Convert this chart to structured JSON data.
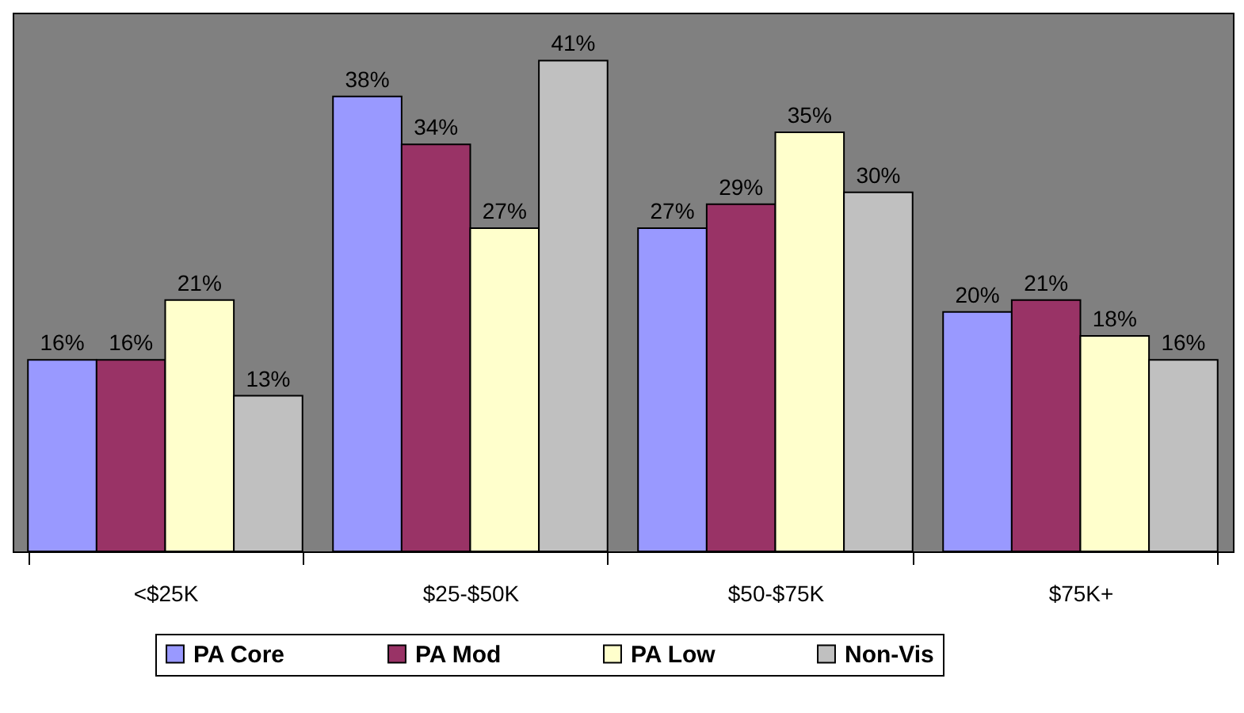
{
  "chart_data": {
    "type": "bar",
    "categories": [
      "<$25K",
      "$25-$50K",
      "$50-$75K",
      "$75K+"
    ],
    "series": [
      {
        "name": "PA Core",
        "color": "#9999ff",
        "values": [
          16,
          38,
          27,
          20
        ],
        "value_labels": [
          "16%",
          "38%",
          "27%",
          "20%"
        ]
      },
      {
        "name": "PA Mod",
        "color": "#993366",
        "values": [
          16,
          34,
          29,
          21
        ],
        "value_labels": [
          "16%",
          "34%",
          "29%",
          "21%"
        ]
      },
      {
        "name": "PA Low",
        "color": "#ffffcc",
        "values": [
          21,
          27,
          35,
          18
        ],
        "value_labels": [
          "21%",
          "27%",
          "35%",
          "18%"
        ]
      },
      {
        "name": "Non-Vis",
        "color": "#c0c0c0",
        "values": [
          13,
          41,
          30,
          16
        ],
        "value_labels": [
          "13%",
          "41%",
          "30%",
          "16%"
        ]
      }
    ],
    "legend": "bottom"
  }
}
